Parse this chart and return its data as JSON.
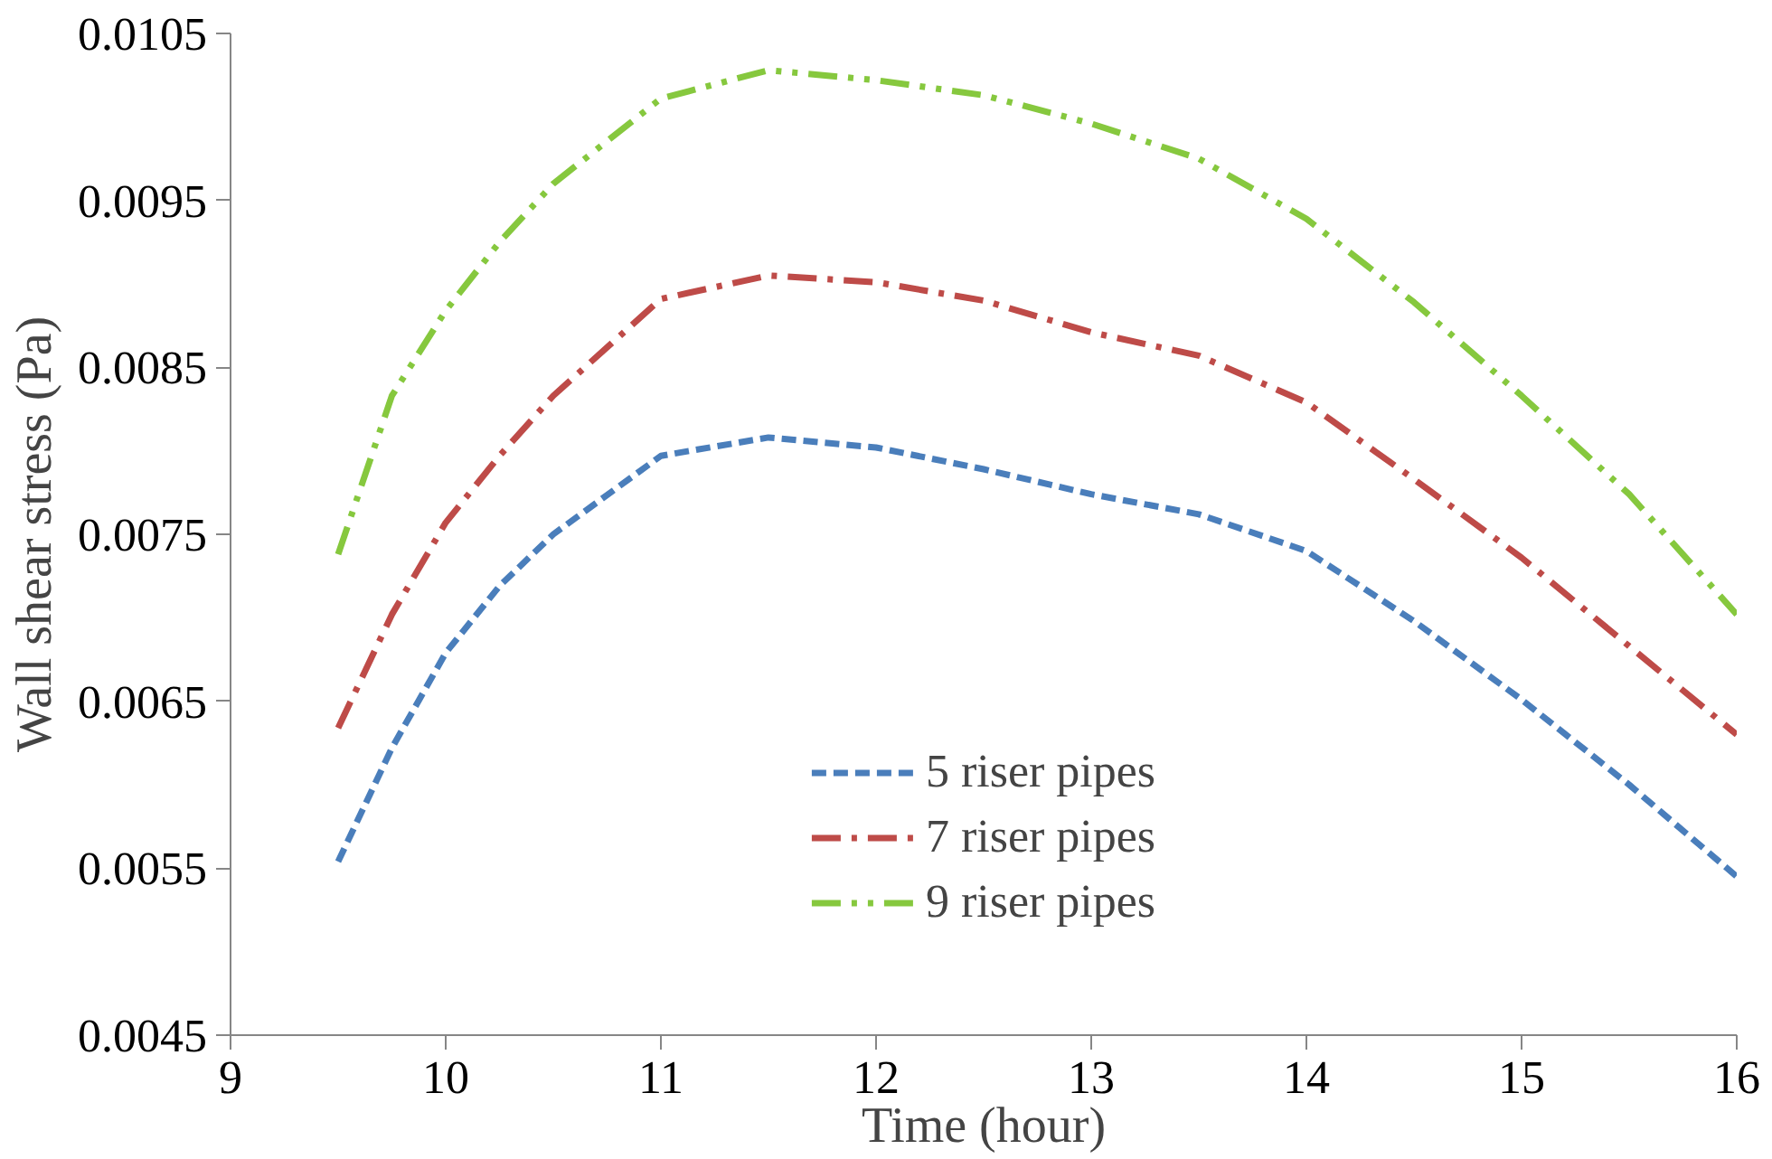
{
  "chart_data": {
    "type": "line",
    "xlabel": "Time (hour)",
    "ylabel": "Wall shear stress (Pa)",
    "x": [
      9.5,
      9.75,
      10,
      10.25,
      10.5,
      11,
      11.5,
      12,
      12.5,
      13,
      13.5,
      14,
      14.5,
      15,
      15.5,
      16
    ],
    "series": [
      {
        "name": "5 riser pipes",
        "color": "#4a7ebb",
        "line_style": "dashed",
        "values": [
          0.00554,
          0.00622,
          0.00679,
          0.00719,
          0.0075,
          0.00797,
          0.00808,
          0.00802,
          0.00789,
          0.00774,
          0.00762,
          0.0074,
          0.00698,
          0.00651,
          0.006,
          0.00545
        ]
      },
      {
        "name": "7 riser pipes",
        "color": "#be4b48",
        "line_style": "dashdot",
        "values": [
          0.00634,
          0.00702,
          0.00757,
          0.00797,
          0.00833,
          0.00891,
          0.00905,
          0.00901,
          0.0089,
          0.00871,
          0.00857,
          0.00829,
          0.00783,
          0.00736,
          0.00683,
          0.0063
        ]
      },
      {
        "name": "9 riser pipes",
        "color": "#86c83e",
        "line_style": "dashdotdot",
        "values": [
          0.00738,
          0.00833,
          0.00884,
          0.00925,
          0.0096,
          0.01011,
          0.01028,
          0.01022,
          0.01013,
          0.00996,
          0.00975,
          0.00939,
          0.00889,
          0.00833,
          0.00774,
          0.00702
        ]
      }
    ],
    "xlim": [
      9,
      16
    ],
    "xticks": [
      9,
      10,
      11,
      12,
      13,
      14,
      15,
      16
    ],
    "ylim": [
      0.0045,
      0.0105
    ],
    "yticks": [
      0.0045,
      0.0055,
      0.0065,
      0.0075,
      0.0085,
      0.0095,
      0.0105
    ],
    "grid": false,
    "legend": "bottom",
    "marker": "none"
  }
}
